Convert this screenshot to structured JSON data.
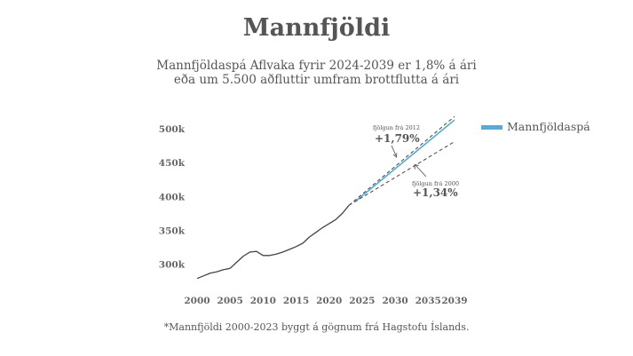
{
  "chart_data": {
    "type": "line",
    "title": "Mannfjöldi",
    "subtitle": [
      "Mannfjöldaspá Aflvaka fyrir 2024-2039 er 1,8% á ári",
      "eða um 5.500 aðfluttir umfram brottflutta á ári"
    ],
    "footnote": "*Mannfjöldi 2000-2023 byggt á gögnum frá Hagstofu Íslands.",
    "xlim": [
      2000,
      2039
    ],
    "ylim": [
      276000,
      517000
    ],
    "x_ticks": [
      2000,
      2005,
      2010,
      2015,
      2020,
      2025,
      2030,
      2035,
      2039
    ],
    "y_ticks": [
      300000,
      350000,
      400000,
      450000,
      500000
    ],
    "y_tick_labels": [
      "300k",
      "350k",
      "400k",
      "450k",
      "500k"
    ],
    "grid": false,
    "legend_position": "right",
    "series": [
      {
        "name": "",
        "style": "solid",
        "color": "#444444",
        "x": [
          2000,
          2001,
          2002,
          2003,
          2004,
          2005,
          2006,
          2007,
          2008,
          2009,
          2010,
          2011,
          2012,
          2013,
          2014,
          2015,
          2016,
          2017,
          2018,
          2019,
          2020,
          2021,
          2022,
          2023
        ],
        "values": [
          279000,
          283000,
          287000,
          289000,
          292000,
          294000,
          303000,
          312000,
          318000,
          319000,
          313000,
          313000,
          315000,
          318000,
          322000,
          326000,
          331000,
          340000,
          347000,
          354000,
          360000,
          366000,
          375000,
          387000
        ]
      },
      {
        "name": "Mannfjöldaspá",
        "style": "solid",
        "color": "#5aabd0",
        "x": [
          2024,
          2039
        ],
        "values": [
          393000,
          513000
        ]
      },
      {
        "name": "fjölgun frá 2012",
        "style": "dashed",
        "color": "#444444",
        "x": [
          2023,
          2039
        ],
        "values": [
          387000,
          518000
        ]
      },
      {
        "name": "fjölgun frá 2000",
        "style": "dashed",
        "color": "#444444",
        "x": [
          2023,
          2039
        ],
        "values": [
          387000,
          481000
        ]
      }
    ],
    "annotations": [
      {
        "small": "fjölgun frá 2012",
        "big": "+1,79%"
      },
      {
        "small": "fjölgun frá 2000",
        "big": "+1,34%"
      }
    ]
  },
  "colors": {
    "forecast": "#5aabd0",
    "history": "#444444"
  }
}
